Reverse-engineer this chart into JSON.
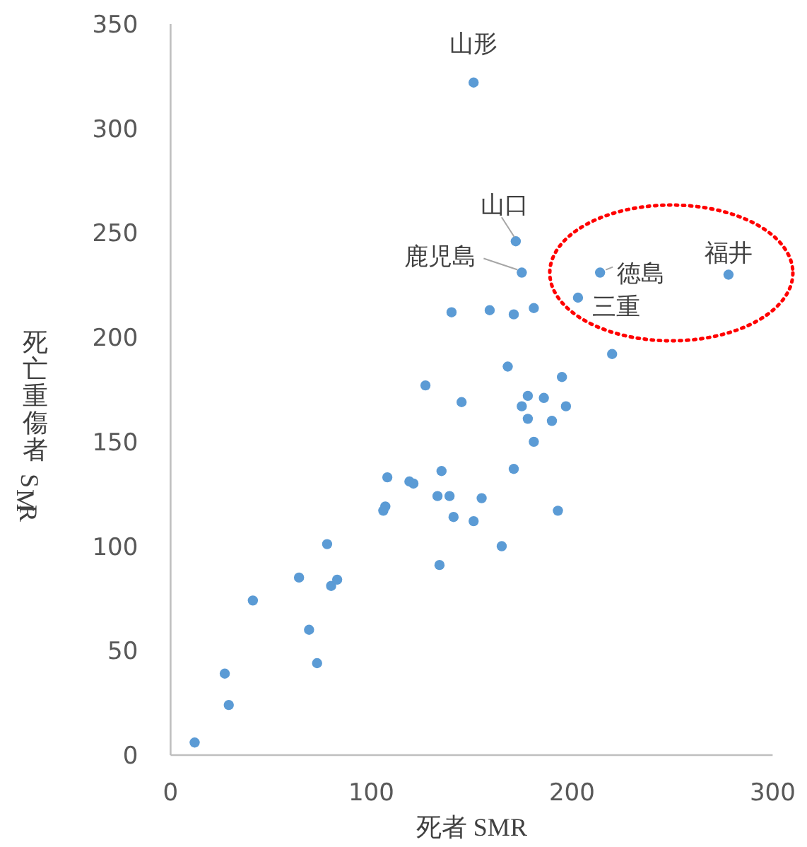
{
  "chart_data": {
    "type": "scatter",
    "xlabel": "死者 SMR",
    "ylabel": "死亡重傷者 SMR",
    "xlim": [
      0,
      300
    ],
    "ylim": [
      0,
      350
    ],
    "xticks": [
      0,
      100,
      200,
      300
    ],
    "yticks": [
      0,
      50,
      100,
      150,
      200,
      250,
      300,
      350
    ],
    "grid": false,
    "marker": "circle",
    "series": [
      {
        "color": "#5b9bd5",
        "x": [
          151,
          172,
          175,
          214,
          278,
          203,
          140,
          159,
          171,
          181,
          220,
          168,
          195,
          127,
          145,
          178,
          186,
          175,
          197,
          178,
          190,
          181,
          171,
          135,
          108,
          119,
          121,
          139,
          133,
          155,
          107,
          106,
          141,
          151,
          193,
          78,
          165,
          134,
          64,
          80,
          83,
          41,
          69,
          73,
          27,
          29,
          12
        ],
        "values": [
          322,
          246,
          231,
          231,
          230,
          219,
          212,
          213,
          211,
          214,
          192,
          186,
          181,
          177,
          169,
          172,
          171,
          167,
          167,
          161,
          160,
          150,
          137,
          136,
          133,
          131,
          130,
          124,
          124,
          123,
          119,
          117,
          114,
          112,
          117,
          101,
          100,
          91,
          85,
          81,
          84,
          74,
          60,
          44,
          39,
          24,
          6
        ]
      }
    ],
    "annotations": [
      {
        "text": "山形",
        "x": 151,
        "y": 322
      },
      {
        "text": "山口",
        "x": 172,
        "y": 246
      },
      {
        "text": "鹿児島",
        "x": 175,
        "y": 231
      },
      {
        "text": "徳島",
        "x": 214,
        "y": 231
      },
      {
        "text": "福井",
        "x": 278,
        "y": 230
      },
      {
        "text": "三重",
        "x": 203,
        "y": 219
      }
    ]
  }
}
